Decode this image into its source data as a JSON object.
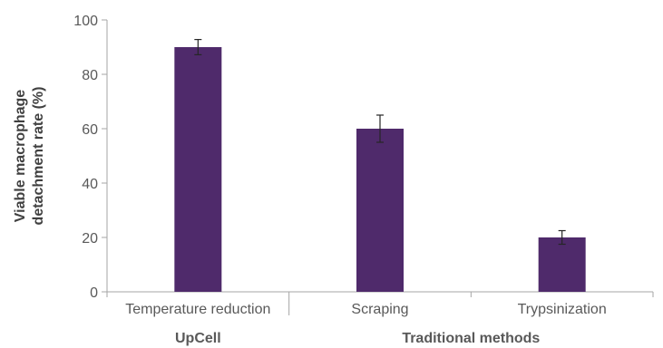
{
  "chart_data": {
    "type": "bar",
    "categories": [
      "Temperature reduction",
      "Scraping",
      "Trypsinization"
    ],
    "values": [
      90,
      60,
      20
    ],
    "error": [
      2.8,
      5.0,
      2.5
    ],
    "groups": [
      {
        "label": "UpCell",
        "categories": [
          0
        ]
      },
      {
        "label": "Traditional methods",
        "categories": [
          1,
          2
        ]
      }
    ],
    "ylabel_lines": [
      "Viable macrophage",
      "detachment rate (%)"
    ],
    "yticks": [
      "0",
      "20",
      "40",
      "60",
      "80",
      "100"
    ],
    "ylim": [
      0,
      100
    ],
    "grid": false,
    "legend": "none",
    "colors": {
      "bar": "#4f2a6b",
      "axis": "#a6a6a6",
      "text": "#595959"
    }
  }
}
